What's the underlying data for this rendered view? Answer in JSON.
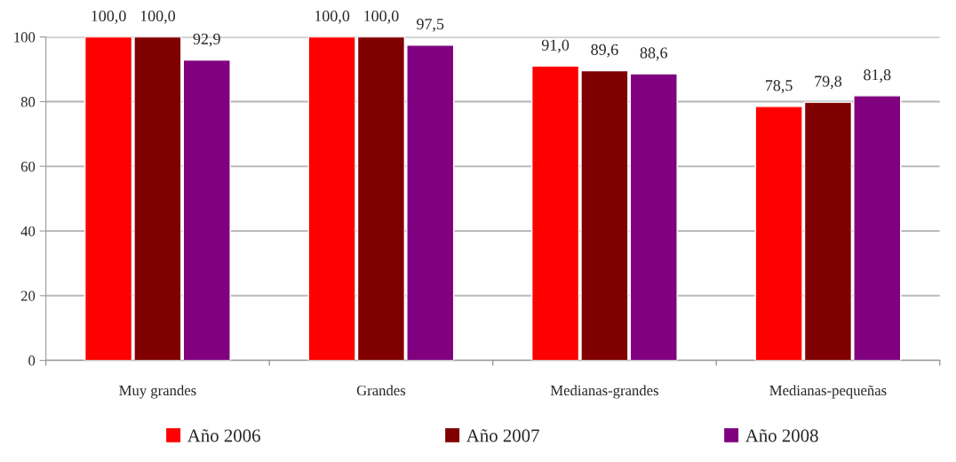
{
  "chart_data": {
    "type": "bar",
    "categories": [
      "Muy grandes",
      "Grandes",
      "Medianas-grandes",
      "Medianas-pequeñas"
    ],
    "series": [
      {
        "name": "Año 2006",
        "color": "#ff0000",
        "values": [
          100.0,
          100.0,
          91.0,
          78.5
        ],
        "value_labels": [
          "100,0",
          "100,0",
          "91,0",
          "78,5"
        ]
      },
      {
        "name": "Año 2007",
        "color": "#800000",
        "values": [
          100.0,
          100.0,
          89.6,
          79.8
        ],
        "value_labels": [
          "100,0",
          "100,0",
          "89,6",
          "79,8"
        ]
      },
      {
        "name": "Año 2008",
        "color": "#800080",
        "values": [
          92.9,
          97.5,
          88.6,
          81.8
        ],
        "value_labels": [
          "92,9",
          "97,5",
          "88,6",
          "81,8"
        ]
      }
    ],
    "ylim": [
      0,
      100
    ],
    "yticks": [
      0,
      20,
      40,
      60,
      80,
      100
    ],
    "grid": "y",
    "legend": "bottom"
  }
}
